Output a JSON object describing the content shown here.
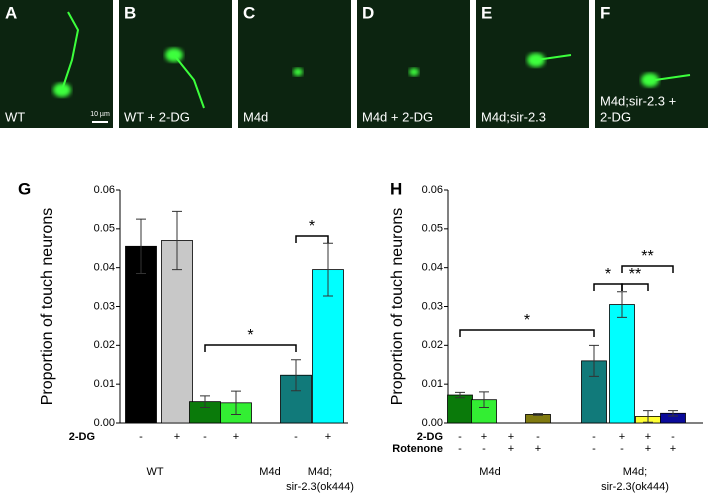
{
  "panels": [
    {
      "letter": "A",
      "caption": [
        "WT"
      ],
      "scale": "10 µm"
    },
    {
      "letter": "B",
      "caption": [
        "WT + 2-DG"
      ]
    },
    {
      "letter": "C",
      "caption": [
        "M4d"
      ]
    },
    {
      "letter": "D",
      "caption": [
        "M4d + 2-DG"
      ]
    },
    {
      "letter": "E",
      "caption": [
        "M4d;sir-2.3"
      ]
    },
    {
      "letter": "F",
      "caption": [
        "M4d;sir-2.3 +",
        "2-DG"
      ]
    }
  ],
  "chart_data": [
    {
      "type": "bar",
      "panel": "G",
      "ylabel": "Proportion of touch neurons",
      "ylim": [
        0,
        0.06
      ],
      "yticks": [
        {
          "value": 0,
          "label": "0.00"
        },
        0.01,
        0.02,
        0.03,
        0.04,
        0.05,
        0.06
      ],
      "values": [
        0.0455,
        0.047,
        0.0055,
        0.0052,
        0.0123,
        0.0395
      ],
      "errors": [
        0.007,
        0.0075,
        0.0015,
        0.003,
        0.004,
        0.0068
      ],
      "colors": [
        "#000000",
        "#c8c8c8",
        "#0a7a0a",
        "#33ee33",
        "#117a7a",
        "#00ffff"
      ],
      "rows": [
        {
          "name": "2-DG",
          "marks": [
            "-",
            "+",
            "-",
            "+",
            "-",
            "+"
          ]
        }
      ],
      "groups": [
        [
          "WT"
        ],
        [
          "M4d"
        ],
        [
          "M4d;",
          "sir-2.3(ok444)"
        ]
      ],
      "annotations": [
        "*",
        "*"
      ]
    },
    {
      "type": "bar",
      "panel": "H",
      "ylabel": "Proportion of touch neurons",
      "ylim": [
        0,
        0.06
      ],
      "yticks": [
        {
          "value": 0,
          "label": "0.00"
        },
        0.01,
        0.02,
        0.03,
        0.04,
        0.05,
        0.06
      ],
      "values": [
        0.0072,
        0.006,
        null,
        0.0022,
        0.016,
        0.0305,
        0.0017,
        0.0025
      ],
      "errors": [
        0.0007,
        0.002,
        null,
        0.0002,
        0.004,
        0.0033,
        0.0015,
        0.0007
      ],
      "colors": [
        "#0a7a0a",
        "#33ee33",
        null,
        "#807a10",
        "#117a7a",
        "#00ffff",
        "#ffff33",
        "#0a0a9a"
      ],
      "rows": [
        {
          "name": "2-DG",
          "marks": [
            "-",
            "+",
            "+",
            "-",
            "-",
            "+",
            "+",
            "-"
          ]
        },
        {
          "name": "Rotenone",
          "marks": [
            "-",
            "-",
            "+",
            "+",
            "-",
            "-",
            "+",
            "+"
          ]
        }
      ],
      "groups": [
        [
          "M4d"
        ],
        [
          "M4d;",
          "sir-2.3(ok444)"
        ]
      ],
      "annotations": [
        "*",
        "*",
        "**",
        "**"
      ]
    }
  ]
}
